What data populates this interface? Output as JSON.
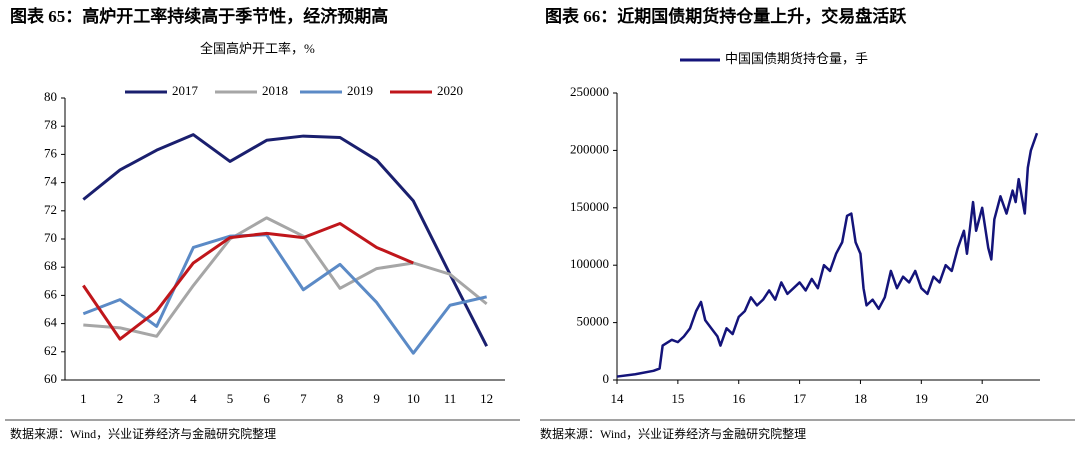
{
  "chart_data": [
    {
      "type": "line",
      "title": "图表 65：高炉开工率持续高于季节性，经济预期高",
      "subtitle": "全国高炉开工率，%",
      "source": "数据来源：Wind，兴业证券经济与金融研究院整理",
      "categories": [
        1,
        2,
        3,
        4,
        5,
        6,
        7,
        8,
        9,
        10,
        11,
        12
      ],
      "ylim": [
        60,
        80
      ],
      "yticks": [
        60,
        62,
        64,
        66,
        68,
        70,
        72,
        74,
        76,
        78,
        80
      ],
      "grid": false,
      "series": [
        {
          "name": "2017",
          "color": "#1a1f6e",
          "values": [
            72.8,
            74.9,
            76.3,
            77.4,
            75.5,
            77.0,
            77.3,
            77.2,
            75.6,
            72.7,
            67.5,
            62.4
          ]
        },
        {
          "name": "2018",
          "color": "#a6a6a6",
          "values": [
            63.9,
            63.7,
            63.1,
            66.7,
            70.0,
            71.5,
            70.2,
            66.5,
            67.9,
            68.3,
            67.5,
            65.4
          ]
        },
        {
          "name": "2019",
          "color": "#5b8ac6",
          "values": [
            64.7,
            65.7,
            63.8,
            69.4,
            70.2,
            70.3,
            66.4,
            68.2,
            65.5,
            61.9,
            65.3,
            65.9
          ]
        },
        {
          "name": "2020",
          "color": "#c0161b",
          "values": [
            66.7,
            62.9,
            64.9,
            68.3,
            70.1,
            70.4,
            70.1,
            71.1,
            69.4,
            68.3,
            null,
            null
          ]
        }
      ]
    },
    {
      "type": "line",
      "title": "图表 66：近期国债期货持仓量上升，交易盘活跃",
      "source": "数据来源：Wind，兴业证券经济与金融研究院整理",
      "x": [
        14.0,
        14.3,
        14.6,
        14.7,
        14.75,
        14.9,
        15.0,
        15.1,
        15.2,
        15.3,
        15.38,
        15.45,
        15.55,
        15.65,
        15.7,
        15.8,
        15.9,
        16.0,
        16.1,
        16.2,
        16.3,
        16.4,
        16.5,
        16.6,
        16.7,
        16.8,
        16.9,
        17.0,
        17.1,
        17.2,
        17.3,
        17.4,
        17.5,
        17.6,
        17.7,
        17.78,
        17.85,
        17.92,
        18.0,
        18.05,
        18.1,
        18.2,
        18.3,
        18.4,
        18.5,
        18.6,
        18.7,
        18.8,
        18.9,
        19.0,
        19.1,
        19.2,
        19.3,
        19.4,
        19.5,
        19.6,
        19.7,
        19.75,
        19.85,
        19.9,
        20.0,
        20.1,
        20.15,
        20.2,
        20.3,
        20.4,
        20.5,
        20.55,
        20.6,
        20.7,
        20.75,
        20.8,
        20.9
      ],
      "xlim": [
        14,
        20.95
      ],
      "xticks": [
        14,
        15,
        16,
        17,
        18,
        19,
        20
      ],
      "ylim": [
        0,
        250000
      ],
      "yticks": [
        0,
        50000,
        100000,
        150000,
        200000,
        250000
      ],
      "grid": false,
      "series": [
        {
          "name": "中国国债期货持仓量，手",
          "color": "#14147a",
          "values": [
            3000,
            5000,
            8000,
            10000,
            30000,
            35000,
            33000,
            38000,
            45000,
            60000,
            68000,
            52000,
            45000,
            38000,
            30000,
            45000,
            40000,
            55000,
            60000,
            72000,
            65000,
            70000,
            78000,
            70000,
            85000,
            75000,
            80000,
            85000,
            78000,
            88000,
            80000,
            100000,
            95000,
            110000,
            120000,
            143000,
            145000,
            120000,
            110000,
            80000,
            65000,
            70000,
            62000,
            72000,
            95000,
            80000,
            90000,
            85000,
            95000,
            80000,
            75000,
            90000,
            85000,
            100000,
            95000,
            115000,
            130000,
            110000,
            155000,
            130000,
            150000,
            115000,
            105000,
            140000,
            160000,
            145000,
            165000,
            155000,
            175000,
            145000,
            185000,
            200000,
            215000
          ]
        }
      ]
    }
  ]
}
